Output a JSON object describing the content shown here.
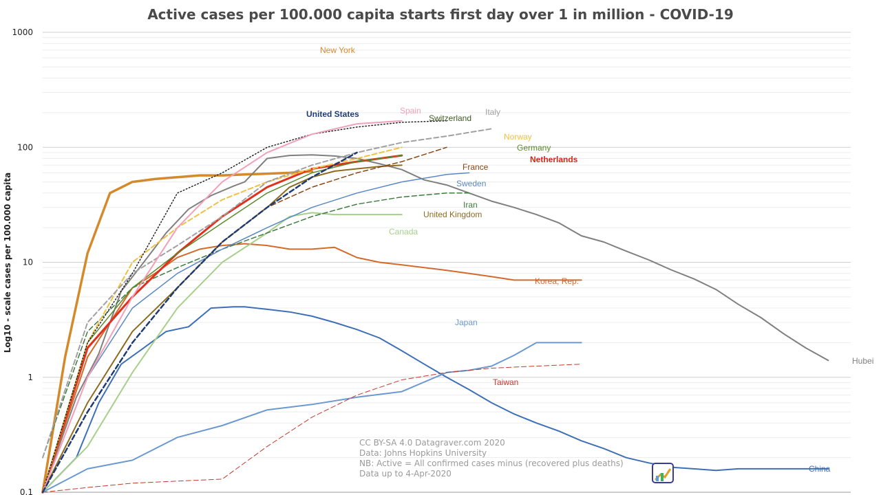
{
  "chart_data": {
    "type": "line",
    "title": "Active cases per 100.000 capita starts first day over 1 in million - COVID-19",
    "ylabel": "Log10 - scale cases per 100.000 capita",
    "xlabel": "",
    "yscale": "log",
    "ylim": [
      0.1,
      1000
    ],
    "yticks": [
      "0.1",
      "1",
      "10",
      "100",
      "1000"
    ],
    "grid": true,
    "notes": [
      "CC BY-SA 4.0  Datagraver.com 2020",
      "Data: Johns Hopkins University",
      "NB: Active = All confirmed cases minus (recovered plus deaths)",
      "Data up to 4-Apr-2020"
    ],
    "series": [
      {
        "name": "New York",
        "color": "#d4892a",
        "style": "solid",
        "width": 3.5,
        "x": [
          0,
          2,
          4,
          6,
          8,
          10,
          12,
          14,
          16,
          18,
          20,
          22,
          24
        ],
        "y": [
          0.1,
          1.5,
          12,
          40,
          50,
          53,
          55,
          57,
          57,
          58,
          59,
          60,
          62
        ]
      },
      {
        "name": "Hubei",
        "color": "#7f7f7f",
        "style": "solid",
        "width": 2,
        "x": [
          0,
          3,
          5,
          7,
          9,
          11,
          13,
          15,
          17,
          18,
          20,
          22,
          24,
          26,
          28,
          30,
          32,
          34,
          36,
          38,
          40,
          42,
          44,
          46,
          48,
          50,
          52,
          54,
          56,
          58,
          60,
          62,
          64,
          66,
          68,
          70
        ],
        "y": [
          0.1,
          0.67,
          1.6,
          5.6,
          10,
          18,
          29,
          38,
          46,
          50,
          80,
          85,
          86,
          84,
          80,
          72,
          64,
          52,
          47,
          40,
          34,
          30,
          26,
          22,
          17,
          15,
          12.5,
          10.5,
          8.6,
          7.2,
          5.8,
          4.3,
          3.3,
          2.4,
          1.8,
          1.4
        ]
      },
      {
        "name": "China",
        "color": "#3d6fb6",
        "style": "solid",
        "width": 2,
        "x": [
          0,
          3,
          5,
          7,
          9,
          11,
          13,
          15,
          17,
          18,
          20,
          22,
          24,
          26,
          28,
          30,
          32,
          34,
          36,
          38,
          40,
          42,
          44,
          46,
          48,
          50,
          52,
          54,
          56,
          58,
          60,
          62,
          64,
          66,
          68,
          70
        ],
        "y": [
          0.1,
          0.2,
          0.6,
          1.3,
          1.8,
          2.5,
          2.75,
          4,
          4.1,
          4.1,
          3.9,
          3.7,
          3.4,
          3.0,
          2.6,
          2.2,
          1.7,
          1.3,
          1.0,
          0.78,
          0.6,
          0.48,
          0.4,
          0.34,
          0.28,
          0.24,
          0.2,
          0.18,
          0.165,
          0.16,
          0.155,
          0.16,
          0.16,
          0.16,
          0.16,
          0.16
        ]
      },
      {
        "name": "Japan",
        "color": "#6a98d0",
        "style": "solid",
        "width": 2,
        "x": [
          0,
          4,
          8,
          12,
          16,
          20,
          24,
          28,
          32,
          36,
          38,
          40,
          42,
          44,
          46,
          48
        ],
        "y": [
          0.1,
          0.16,
          0.19,
          0.3,
          0.38,
          0.52,
          0.58,
          0.67,
          0.75,
          1.1,
          1.15,
          1.25,
          1.55,
          2.0,
          2.0,
          2.0
        ]
      },
      {
        "name": "Taiwan",
        "color": "#c0392b",
        "style": "dashed",
        "width": 1,
        "x": [
          0,
          4,
          8,
          12,
          16,
          20,
          24,
          28,
          32,
          36,
          40,
          44,
          48
        ],
        "y": [
          0.1,
          0.11,
          0.12,
          0.125,
          0.13,
          0.25,
          0.45,
          0.7,
          0.95,
          1.1,
          1.2,
          1.25,
          1.3
        ]
      },
      {
        "name": "Korea, Rep.",
        "color": "#d4692a",
        "style": "solid",
        "width": 2,
        "x": [
          0,
          4,
          8,
          10,
          12,
          14,
          16,
          18,
          20,
          22,
          24,
          26,
          28,
          30,
          32,
          34,
          36,
          38,
          40,
          42,
          44,
          46,
          48
        ],
        "y": [
          0.1,
          1.5,
          6,
          8,
          11,
          13,
          14,
          14.5,
          14,
          13,
          13,
          13.5,
          11,
          10,
          9.5,
          9,
          8.5,
          8,
          7.5,
          7,
          7,
          7,
          7
        ]
      },
      {
        "name": "Canada",
        "color": "#a6cf8a",
        "style": "solid",
        "width": 2,
        "x": [
          0,
          4,
          8,
          12,
          16,
          20,
          22,
          24,
          26,
          28,
          30,
          32
        ],
        "y": [
          0.1,
          0.25,
          1.1,
          4,
          10,
          18,
          25,
          27,
          26,
          26,
          26,
          26
        ]
      },
      {
        "name": "Iran",
        "color": "#3d7a3d",
        "style": "dashed",
        "width": 1.5,
        "x": [
          0,
          4,
          8,
          12,
          16,
          20,
          24,
          28,
          32,
          36,
          38
        ],
        "y": [
          0.2,
          2.5,
          6,
          9,
          13,
          18,
          25,
          32,
          37,
          40,
          40
        ]
      },
      {
        "name": "United Kingdom",
        "color": "#8c6b1f",
        "style": "solid",
        "width": 2,
        "x": [
          0,
          4,
          8,
          12,
          16,
          20,
          22,
          24,
          26,
          28,
          30,
          32
        ],
        "y": [
          0.1,
          0.6,
          2.5,
          6,
          15,
          30,
          45,
          55,
          62,
          65,
          68,
          70
        ]
      },
      {
        "name": "Sweden",
        "color": "#5b87c4",
        "style": "solid",
        "width": 1.5,
        "x": [
          0,
          4,
          8,
          12,
          16,
          20,
          24,
          28,
          32,
          36,
          38
        ],
        "y": [
          0.1,
          1,
          4,
          8,
          13,
          20,
          30,
          40,
          50,
          58,
          60
        ]
      },
      {
        "name": "France",
        "color": "#8b4513",
        "style": "dashed",
        "width": 1.5,
        "x": [
          0,
          4,
          8,
          12,
          16,
          20,
          24,
          28,
          32,
          36
        ],
        "y": [
          0.1,
          0.5,
          2,
          6,
          15,
          30,
          45,
          60,
          75,
          100
        ]
      },
      {
        "name": "Netherlands",
        "color": "#e0301e",
        "style": "solid",
        "width": 3,
        "x": [
          0,
          4,
          8,
          12,
          16,
          20,
          24,
          28,
          32
        ],
        "y": [
          0.1,
          1.8,
          5,
          12,
          25,
          45,
          65,
          75,
          85
        ]
      },
      {
        "name": "Germany",
        "color": "#5a8a2a",
        "style": "solid",
        "width": 1.5,
        "x": [
          0,
          4,
          8,
          12,
          16,
          20,
          24,
          28,
          32
        ],
        "y": [
          0.1,
          2,
          6,
          12,
          22,
          40,
          60,
          75,
          85
        ]
      },
      {
        "name": "Norway",
        "color": "#f0c040",
        "style": "dashed",
        "width": 2,
        "x": [
          0,
          4,
          8,
          12,
          16,
          20,
          24,
          28,
          32
        ],
        "y": [
          0.1,
          2,
          10,
          20,
          35,
          50,
          65,
          80,
          100
        ]
      },
      {
        "name": "Italy",
        "color": "#a0a0a0",
        "style": "dashed",
        "width": 2,
        "x": [
          0,
          4,
          8,
          12,
          16,
          20,
          24,
          28,
          32,
          36,
          40
        ],
        "y": [
          0.2,
          3,
          8,
          14,
          25,
          50,
          70,
          90,
          110,
          125,
          145
        ]
      },
      {
        "name": "Switzerland",
        "color": "#222222",
        "style": "dotted",
        "width": 1.5,
        "x": [
          0,
          4,
          8,
          12,
          16,
          20,
          24,
          28,
          32,
          36
        ],
        "y": [
          0.1,
          2,
          8,
          40,
          60,
          100,
          130,
          150,
          165,
          170
        ]
      },
      {
        "name": "Spain",
        "color": "#f0a0b8",
        "style": "solid",
        "width": 2,
        "x": [
          0,
          4,
          8,
          12,
          16,
          20,
          24,
          28,
          32
        ],
        "y": [
          0.1,
          1,
          5,
          20,
          50,
          90,
          130,
          160,
          170
        ]
      },
      {
        "name": "United States",
        "color": "#1f3b73",
        "style": "dashed",
        "width": 2.5,
        "x": [
          0,
          4,
          8,
          12,
          16,
          20,
          24,
          28
        ],
        "y": [
          0.1,
          0.5,
          2,
          6,
          15,
          30,
          55,
          90
        ]
      }
    ]
  }
}
